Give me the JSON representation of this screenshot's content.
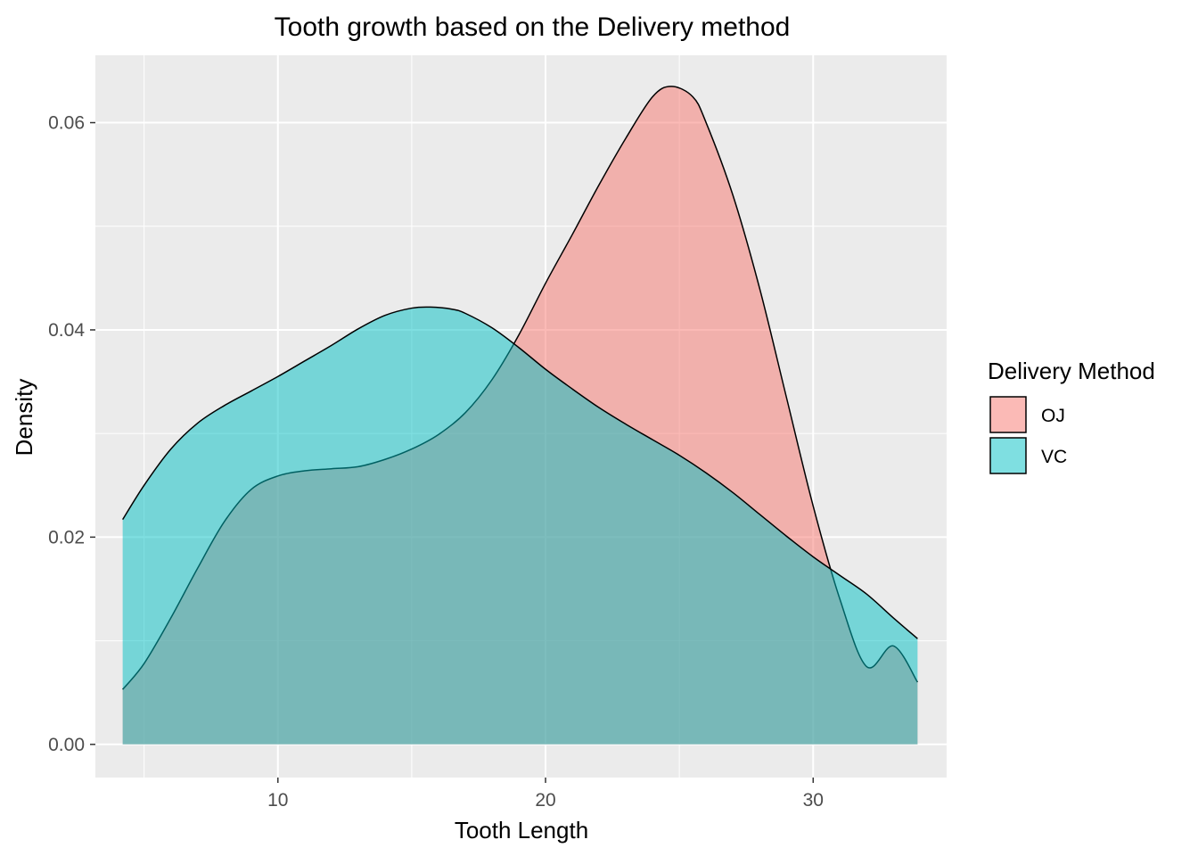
{
  "chart_data": {
    "type": "area",
    "title": "Tooth growth based on the Delivery method",
    "xlabel": "Tooth Length",
    "ylabel": "Density",
    "xlim": [
      3.18,
      35.02
    ],
    "ylim": [
      -0.0032,
      0.0665
    ],
    "x_ticks": [
      10,
      20,
      30
    ],
    "y_ticks": [
      0.0,
      0.02,
      0.04,
      0.06
    ],
    "x_tick_labels": [
      "10",
      "20",
      "30"
    ],
    "y_tick_labels": [
      "0.00",
      "0.02",
      "0.04",
      "0.06"
    ],
    "grid": true,
    "legend": {
      "title": "Delivery Method",
      "position": "right",
      "entries": [
        "OJ",
        "VC"
      ]
    },
    "series": [
      {
        "name": "OJ",
        "color": "#F8766D",
        "x": [
          4.2,
          5.0,
          6.0,
          7.0,
          8.0,
          9.0,
          10.0,
          11.0,
          12.0,
          13.0,
          14.0,
          15.0,
          16.0,
          17.0,
          18.0,
          19.0,
          20.0,
          21.0,
          22.0,
          23.0,
          24.0,
          24.7,
          25.5,
          26.0,
          27.0,
          28.0,
          29.0,
          30.0,
          31.0,
          32.0,
          33.0,
          33.9
        ],
        "y": [
          0.0053,
          0.0078,
          0.0122,
          0.017,
          0.0215,
          0.0246,
          0.0259,
          0.0264,
          0.0266,
          0.0268,
          0.0275,
          0.0285,
          0.0299,
          0.032,
          0.0352,
          0.0395,
          0.0445,
          0.0492,
          0.054,
          0.0585,
          0.0625,
          0.0635,
          0.0625,
          0.06,
          0.053,
          0.044,
          0.0335,
          0.023,
          0.014,
          0.0075,
          0.0095,
          0.006
        ]
      },
      {
        "name": "VC",
        "color": "#00BFC4",
        "x": [
          4.2,
          5.0,
          6.0,
          7.0,
          8.0,
          9.0,
          10.0,
          11.0,
          12.0,
          13.0,
          14.0,
          15.0,
          15.7,
          16.5,
          17.0,
          18.0,
          19.0,
          20.0,
          21.0,
          22.0,
          23.0,
          24.0,
          25.0,
          26.0,
          27.0,
          28.0,
          29.0,
          30.0,
          31.0,
          32.0,
          33.0,
          33.9
        ],
        "y": [
          0.0217,
          0.025,
          0.0285,
          0.031,
          0.0327,
          0.0341,
          0.0355,
          0.037,
          0.0385,
          0.0401,
          0.0414,
          0.0421,
          0.0422,
          0.042,
          0.0416,
          0.0402,
          0.0383,
          0.0362,
          0.0343,
          0.0325,
          0.0309,
          0.0294,
          0.0279,
          0.0262,
          0.0243,
          0.0222,
          0.0201,
          0.0181,
          0.0163,
          0.0145,
          0.0122,
          0.0102
        ]
      }
    ]
  }
}
